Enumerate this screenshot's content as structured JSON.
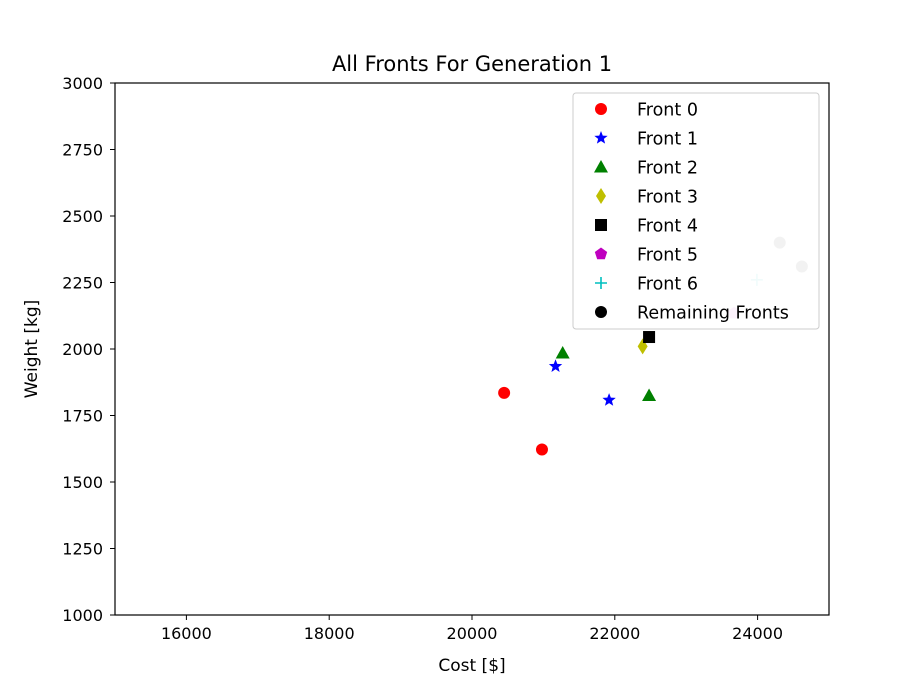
{
  "chart_data": {
    "type": "scatter",
    "title": "All Fronts For Generation 1",
    "xlabel": "Cost [$]",
    "ylabel": "Weight [kg]",
    "xlim": [
      15000,
      25000
    ],
    "ylim": [
      1000,
      3000
    ],
    "xticks": [
      16000,
      18000,
      20000,
      22000,
      24000
    ],
    "yticks": [
      1000,
      1250,
      1500,
      1750,
      2000,
      2250,
      2500,
      2750,
      3000
    ],
    "legend_placement": "upper-right",
    "grid": false,
    "series": [
      {
        "name": "Front 0",
        "marker": "circle",
        "color": "#ff0000",
        "points": [
          [
            20450,
            1835
          ],
          [
            20980,
            1622
          ]
        ]
      },
      {
        "name": "Front 1",
        "marker": "star",
        "color": "#0000ff",
        "points": [
          [
            21170,
            1935
          ],
          [
            21920,
            1808
          ]
        ]
      },
      {
        "name": "Front 2",
        "marker": "triangle",
        "color": "#008000",
        "points": [
          [
            21270,
            1985
          ],
          [
            22480,
            1825
          ]
        ]
      },
      {
        "name": "Front 3",
        "marker": "diamond",
        "color": "#bfbf00",
        "points": [
          [
            22390,
            2010
          ]
        ]
      },
      {
        "name": "Front 4",
        "marker": "square",
        "color": "#000000",
        "points": [
          [
            22480,
            2045
          ]
        ]
      },
      {
        "name": "Front 5",
        "marker": "pentagon",
        "color": "#bf00bf",
        "points": [
          [
            23670,
            2135
          ]
        ]
      },
      {
        "name": "Front 6",
        "marker": "plus",
        "color": "#00bfbf",
        "points": [
          [
            23990,
            2260
          ]
        ]
      },
      {
        "name": "Remaining Fronts",
        "marker": "circle",
        "color": "#000000",
        "points": [
          [
            24310,
            2400
          ],
          [
            24620,
            2310
          ]
        ]
      }
    ]
  }
}
